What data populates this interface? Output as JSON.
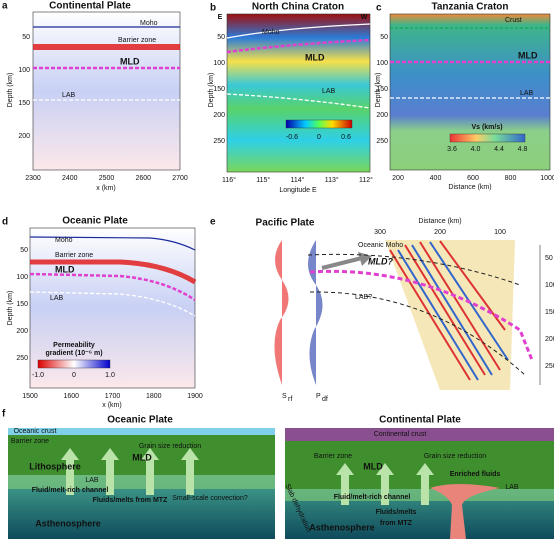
{
  "panels": [
    {
      "label": "a",
      "title": "Continental Plate",
      "y_axis": "Depth (km)",
      "x_axis": "x (km)",
      "yticks": [
        50,
        100,
        150,
        200
      ],
      "xticks": [
        2300,
        2400,
        2500,
        2600,
        2700
      ],
      "annotations": [
        "Moho",
        "Barrier zone",
        "MLD",
        "LAB"
      ]
    },
    {
      "label": "b",
      "title": "North China Craton",
      "corners": [
        "E",
        "W"
      ],
      "y_axis": "Depth (km)",
      "x_axis": "Longitude E",
      "yticks": [
        50,
        100,
        150,
        200,
        250
      ],
      "xticks": [
        "116°",
        "115°",
        "114°",
        "113°",
        "112°"
      ],
      "annotations": [
        "Moho",
        "MLD",
        "LAB"
      ],
      "colorbar": [
        "-0.6",
        "0",
        "0.6"
      ]
    },
    {
      "label": "c",
      "title": "Tanzania Craton",
      "y_axis": "Depth (km)",
      "x_axis": "Distance (km)",
      "yticks": [
        50,
        100,
        150,
        200,
        250
      ],
      "xticks": [
        200,
        400,
        600,
        800,
        1000
      ],
      "annotations": [
        "Crust",
        "MLD",
        "LAB"
      ],
      "colorbar_title": "Vs (km/s)",
      "colorbar": [
        "3.6",
        "4.0",
        "4.4",
        "4.8"
      ]
    },
    {
      "label": "d",
      "title": "Oceanic Plate",
      "y_axis": "Depth (km)",
      "x_axis": "x (km)",
      "yticks": [
        50,
        100,
        150,
        200,
        250
      ],
      "xticks": [
        1500,
        1600,
        1700,
        1800,
        1900
      ],
      "annotations": [
        "Moho",
        "Barrier zone",
        "MLD",
        "LAB"
      ],
      "colorbar_title": [
        "Permeability",
        "gradient (10⁻⁶ m)"
      ],
      "colorbar": [
        "-1.0",
        "0",
        "1.0"
      ]
    },
    {
      "label": "e",
      "title": "Pacific Plate",
      "x_axis": "Distance (km)",
      "xticks": [
        300,
        200,
        100
      ],
      "yticks": [
        50,
        100,
        150,
        200,
        250
      ],
      "annotations": [
        "Oceanic Moho",
        "MLD?",
        "LAB?"
      ],
      "traces": [
        {
          "base": "S",
          "sub": "rf"
        },
        {
          "base": "P",
          "sub": "df"
        }
      ]
    }
  ],
  "schematics": {
    "label": "f",
    "items": [
      {
        "title": "Oceanic Plate",
        "crust": "Oceanic crust",
        "barrier": "Barrier zone",
        "grain": "Grain size reduction",
        "mld": "MLD",
        "lithosphere": "Lithosphere",
        "lab": "LAB",
        "channel": "Fluid/melt-rich channel",
        "convection": "Small-scale convection?",
        "fluids": [
          "Fluids/melts from MTZ"
        ],
        "asthenosphere": "Asthenosphere"
      },
      {
        "title": "Continental Plate",
        "crust": "Continental crust",
        "barrier": "Barrier zone",
        "grain": "Grain size reduction",
        "mld": "MLD",
        "enriched": "Enriched fluids",
        "lab": "LAB",
        "channel": "Fluid/melt-rich channel",
        "slab": "Slab dehydration",
        "fluids": [
          "Fluids/melts",
          "from MTZ"
        ],
        "asthenosphere": "Asthenosphere"
      }
    ]
  }
}
